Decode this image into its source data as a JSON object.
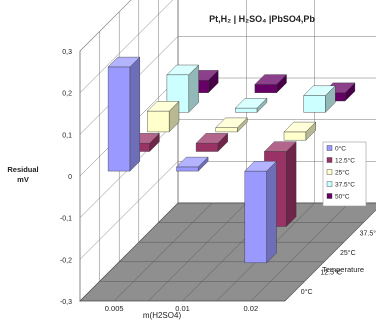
{
  "chart_data": {
    "type": "bar",
    "title": "Pt,H₂ | H₂SO₄ |PbSO4,Pb",
    "ylabel": "Residual mV",
    "ylabel_line1": "Residual",
    "ylabel_line2": "mV",
    "xlabel": "m(H2SO4)",
    "zlabel": "Temperature",
    "ylim": [
      -0.3,
      0.3
    ],
    "yticks": [
      "0,3",
      "0,2",
      "0,1",
      "0",
      "-0,1",
      "-0,2",
      "-0,3"
    ],
    "categories": [
      "0.005",
      "0.01",
      "0.02"
    ],
    "grid": true,
    "legend_position": "right",
    "series": [
      {
        "name": "0°C",
        "color": "#9999ff",
        "values": [
          0.25,
          0.01,
          -0.22
        ]
      },
      {
        "name": "12.5°C",
        "color": "#993366",
        "values": [
          0.02,
          0.02,
          -0.18
        ]
      },
      {
        "name": "25°C",
        "color": "#ffffcc",
        "values": [
          0.05,
          0.01,
          -0.02
        ]
      },
      {
        "name": "37.5°C",
        "color": "#ccffff",
        "values": [
          0.09,
          0.01,
          0.04
        ]
      },
      {
        "name": "50°C",
        "color": "#660066",
        "values": [
          0.03,
          0.02,
          -0.02
        ]
      }
    ]
  }
}
